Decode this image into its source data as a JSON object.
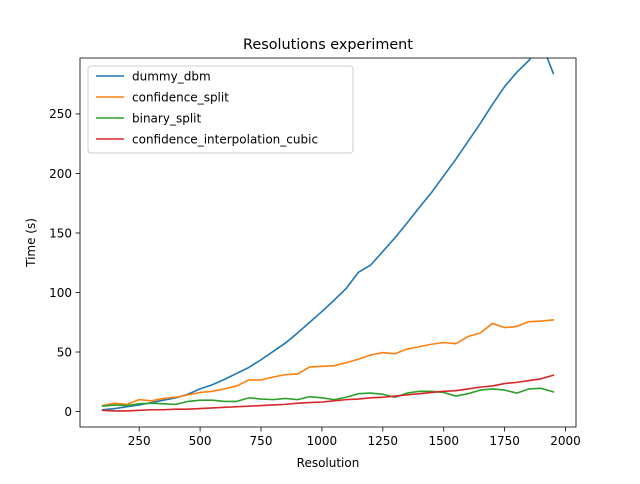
{
  "chart_data": {
    "type": "line",
    "title": "Resolutions experiment",
    "xlabel": "Resolution",
    "ylabel": "Time (s)",
    "xlim": [
      7,
      2043
    ],
    "ylim": [
      -13,
      297
    ],
    "xticks": [
      250,
      500,
      750,
      1000,
      1250,
      1500,
      1750,
      2000
    ],
    "yticks": [
      0,
      50,
      100,
      150,
      200,
      250
    ],
    "grid": false,
    "legend_position": "upper-left",
    "x": [
      100,
      150,
      200,
      250,
      300,
      350,
      400,
      450,
      500,
      550,
      600,
      650,
      700,
      750,
      800,
      850,
      900,
      950,
      1000,
      1050,
      1100,
      1150,
      1200,
      1250,
      1300,
      1350,
      1400,
      1450,
      1500,
      1550,
      1600,
      1650,
      1700,
      1750,
      1800,
      1850,
      1900,
      1950
    ],
    "series": [
      {
        "name": "dummy_dbm",
        "color": "#1f77b4",
        "values": [
          1.5,
          2.5,
          4,
          5.5,
          7.5,
          9.5,
          11.5,
          14.5,
          19,
          22.5,
          27,
          32,
          37,
          43.5,
          50.5,
          57.5,
          66,
          75,
          84,
          93.5,
          103.5,
          117,
          123,
          134.5,
          146,
          158.5,
          171.5,
          184,
          198,
          212,
          227,
          242,
          258,
          273,
          285,
          295,
          310,
          284
        ]
      },
      {
        "name": "confidence_split",
        "color": "#ff7f0e",
        "values": [
          5,
          7,
          6,
          10,
          9,
          11,
          12,
          14,
          16,
          17,
          19,
          21.5,
          26.5,
          26.5,
          29,
          31,
          31.5,
          37.5,
          38,
          38.5,
          41,
          44,
          47.5,
          49.5,
          48.5,
          52.5,
          54.5,
          56.5,
          58,
          57,
          63,
          66,
          74,
          70.5,
          71.5,
          75.5,
          76,
          77
        ]
      },
      {
        "name": "binary_split",
        "color": "#2ca02c",
        "values": [
          4.5,
          5.5,
          5,
          6.5,
          7,
          6.5,
          6,
          8.5,
          9.5,
          9.5,
          8.5,
          8.5,
          11.5,
          10.5,
          10,
          11,
          10,
          12.5,
          11.5,
          10,
          12,
          15,
          15.5,
          14.5,
          12,
          15.5,
          17,
          17,
          16,
          13,
          15,
          18,
          19,
          18,
          15.5,
          19,
          19.5,
          16.5
        ]
      },
      {
        "name": "confidence_interpolation_cubic",
        "color": "#d62728",
        "values": [
          1,
          0.5,
          0.5,
          1,
          1.5,
          1.5,
          2,
          2,
          2.5,
          3,
          3.5,
          4,
          4.5,
          5,
          5.5,
          6,
          7,
          7.5,
          8,
          9,
          10,
          10.5,
          11.5,
          12,
          13,
          14,
          15,
          16,
          17,
          17.5,
          19,
          20.5,
          21.5,
          23.5,
          24.5,
          26,
          27.5,
          30.5
        ]
      }
    ]
  }
}
